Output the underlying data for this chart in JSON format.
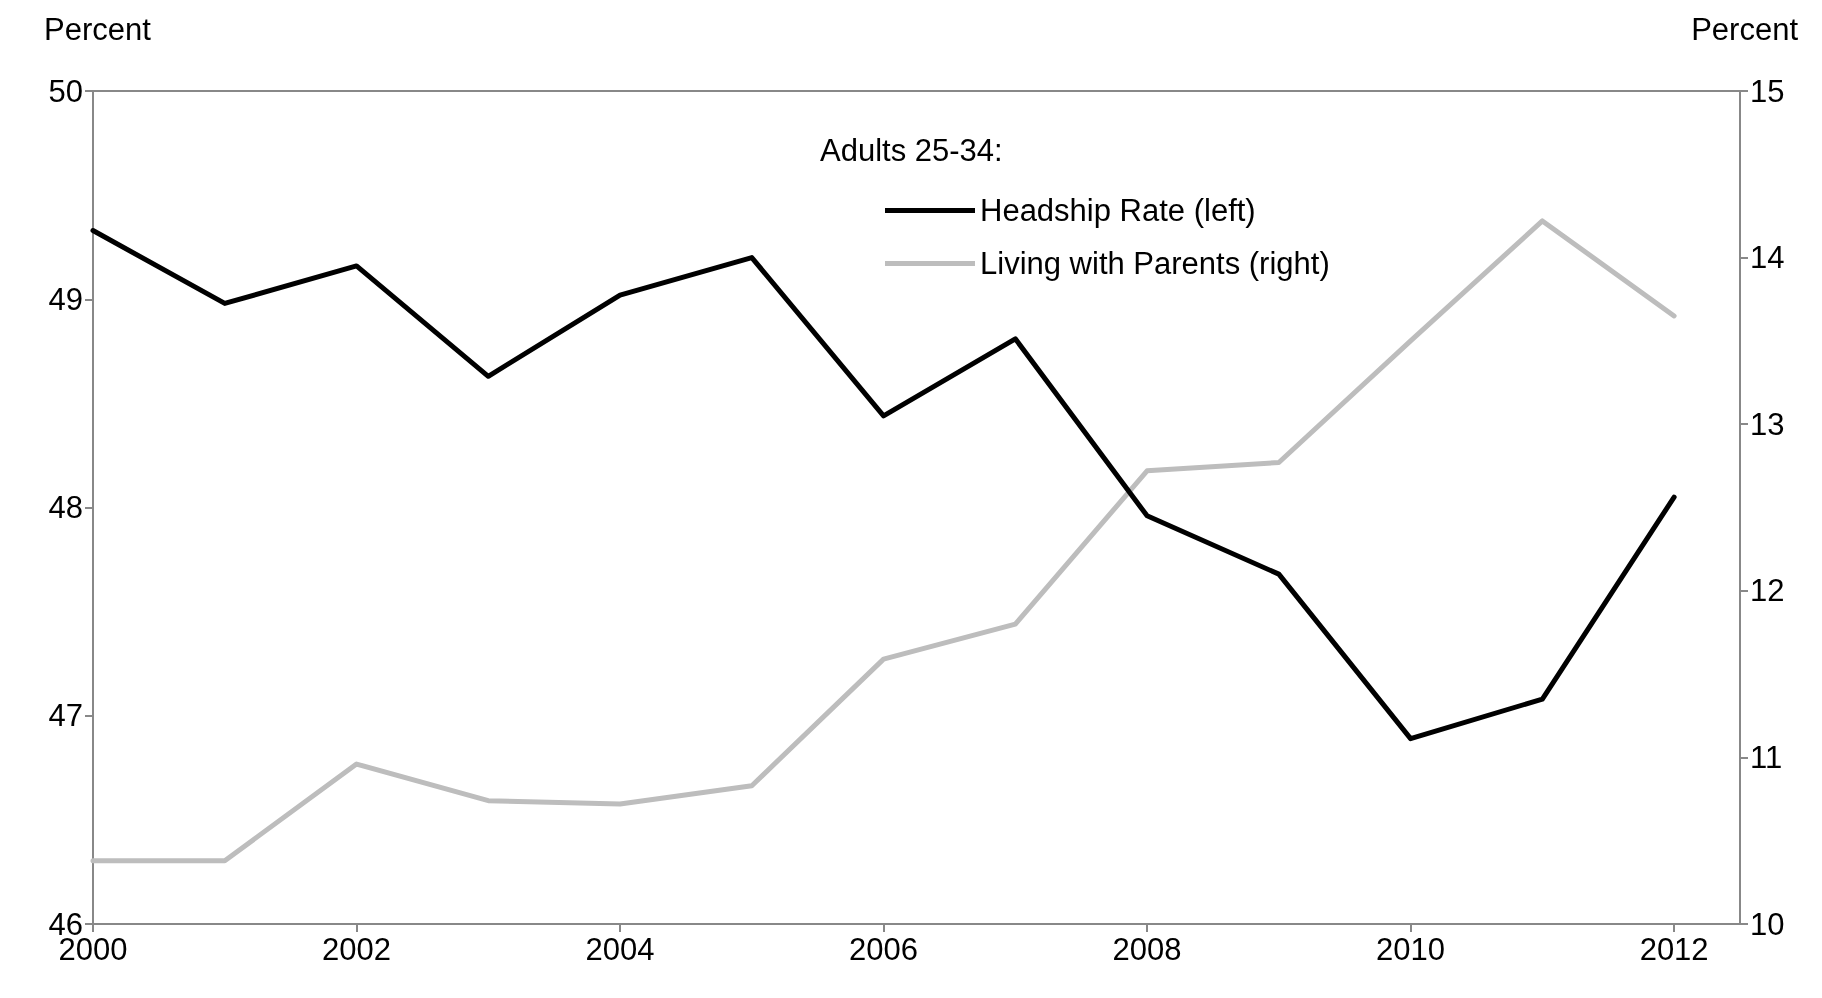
{
  "chart_data": {
    "type": "line",
    "ylabel": "Percent",
    "y2label": "Percent",
    "legend_title": "Adults 25-34:",
    "x": [
      2000,
      2001,
      2002,
      2003,
      2004,
      2005,
      2006,
      2007,
      2008,
      2009,
      2010,
      2011,
      2012
    ],
    "series": [
      {
        "name": "Headship Rate (left)",
        "color": "#000000",
        "values": [
          49.33,
          48.98,
          49.16,
          48.63,
          49.02,
          49.2,
          48.44,
          48.81,
          47.96,
          47.68,
          46.89,
          47.08,
          48.05
        ]
      },
      {
        "name": "Living with Parents (right)",
        "color": "#bdbdbd",
        "axis": "y2",
        "values": [
          10.38,
          10.38,
          10.96,
          10.74,
          10.72,
          10.83,
          11.59,
          11.8,
          12.72,
          12.77,
          13.5,
          14.22,
          13.65
        ]
      }
    ],
    "xlim": [
      2000,
      2012.5
    ],
    "xticks": [
      2000,
      2002,
      2004,
      2006,
      2008,
      2010,
      2012
    ],
    "ylim": [
      46,
      50
    ],
    "yticks": [
      46,
      47,
      48,
      49,
      50
    ],
    "y2lim": [
      10,
      15
    ],
    "y2ticks": [
      10,
      11,
      12,
      13,
      14,
      15
    ],
    "grid": false,
    "legend": "top",
    "marker": "none",
    "line_style": "solid"
  }
}
